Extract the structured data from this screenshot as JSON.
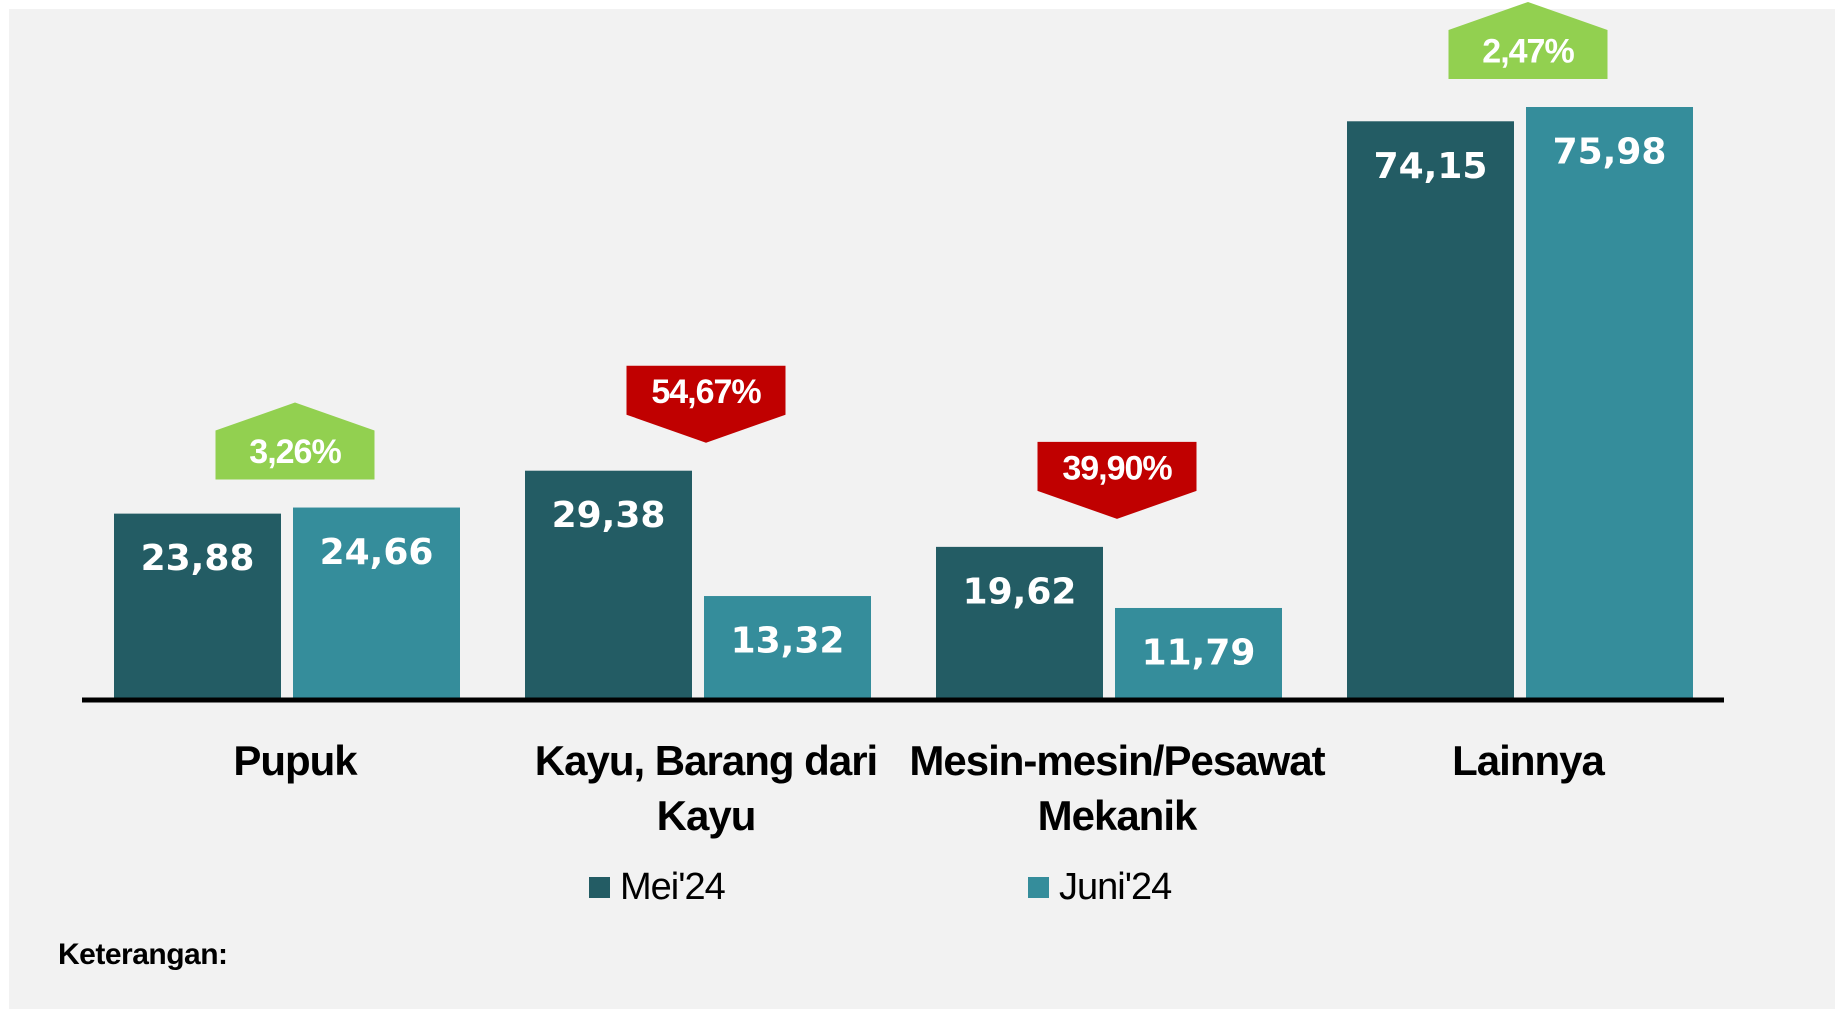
{
  "chart_data": {
    "type": "bar",
    "categories": [
      "Pupuk",
      "Kayu, Barang dari Kayu",
      "Mesin-mesin/Pesawat Mekanik",
      "Lainnya"
    ],
    "series": [
      {
        "name": "Mei'24",
        "color": "#235c64",
        "values": [
          23.88,
          29.38,
          19.62,
          74.15
        ],
        "value_labels": [
          "23,88",
          "29,38",
          "19,62",
          "74,15"
        ]
      },
      {
        "name": "Juni'24",
        "color": "#358d9b",
        "values": [
          24.66,
          13.32,
          11.79,
          75.98
        ],
        "value_labels": [
          "24,66",
          "13,32",
          "11,79",
          "75,98"
        ]
      }
    ],
    "annotations": [
      {
        "label": "3,26%",
        "direction": "up",
        "color": "#92d050"
      },
      {
        "label": "54,67%",
        "direction": "down",
        "color": "#c00000"
      },
      {
        "label": "39,90%",
        "direction": "down",
        "color": "#c00000"
      },
      {
        "label": "2,47%",
        "direction": "up",
        "color": "#92d050"
      }
    ],
    "footnote": "Keterangan:"
  }
}
